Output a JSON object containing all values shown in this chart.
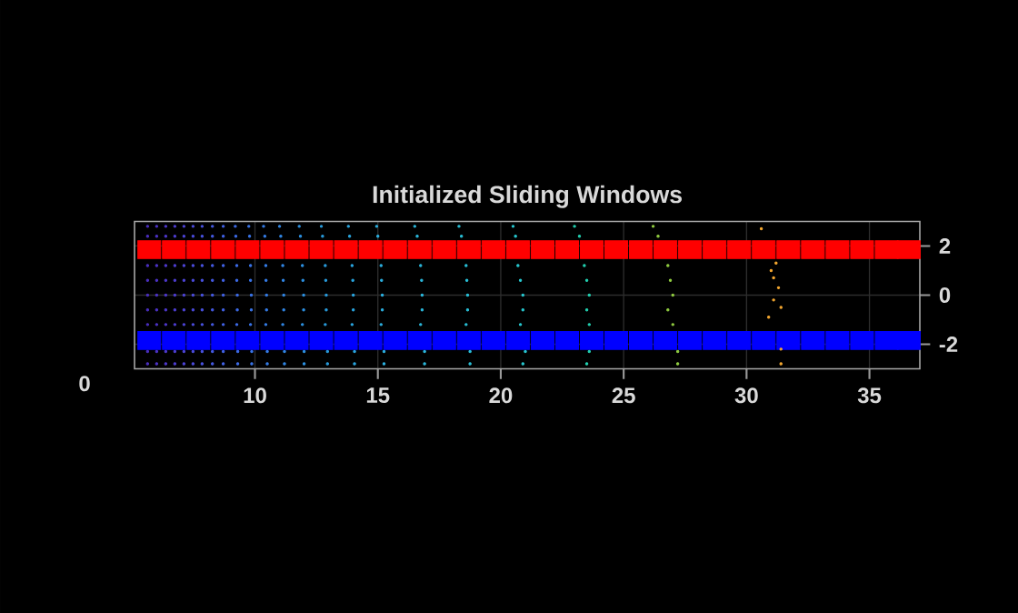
{
  "chart_data": {
    "type": "scatter",
    "title": "Initialized Sliding Windows",
    "annotations": [
      "0"
    ],
    "xlim": [
      5.1,
      37.05
    ],
    "ylim": [
      -3,
      3
    ],
    "xticks": [
      10,
      15,
      20,
      25,
      30,
      35
    ],
    "yticks": [
      -2,
      0,
      2
    ],
    "grid": true,
    "series": [
      {
        "marker": "square",
        "color": "#ff0000",
        "x": [
          5.7,
          6.7,
          7.7,
          8.7,
          9.7,
          10.7,
          11.7,
          12.7,
          13.7,
          14.7,
          15.7,
          16.7,
          17.7,
          18.7,
          19.7,
          20.7,
          21.7,
          22.7,
          23.7,
          24.7,
          25.7,
          26.7,
          27.7,
          28.7,
          29.7,
          30.7,
          31.7,
          32.7,
          33.7,
          34.7,
          35.7,
          36.6
        ],
        "values": [
          1.85,
          1.85,
          1.85,
          1.85,
          1.85,
          1.85,
          1.85,
          1.85,
          1.85,
          1.85,
          1.85,
          1.85,
          1.85,
          1.85,
          1.85,
          1.85,
          1.85,
          1.85,
          1.85,
          1.85,
          1.85,
          1.85,
          1.85,
          1.85,
          1.85,
          1.85,
          1.85,
          1.85,
          1.85,
          1.85,
          1.85,
          1.85
        ]
      },
      {
        "marker": "square",
        "color": "#0000ff",
        "x": [
          5.7,
          6.7,
          7.7,
          8.7,
          9.7,
          10.7,
          11.7,
          12.7,
          13.7,
          14.7,
          15.7,
          16.7,
          17.7,
          18.7,
          19.7,
          20.7,
          21.7,
          22.7,
          23.7,
          24.7,
          25.7,
          26.7,
          27.7,
          28.7,
          29.7,
          30.7,
          31.7,
          32.7,
          33.7,
          34.7,
          35.7,
          36.6
        ],
        "values": [
          -1.85,
          -1.85,
          -1.85,
          -1.85,
          -1.85,
          -1.85,
          -1.85,
          -1.85,
          -1.85,
          -1.85,
          -1.85,
          -1.85,
          -1.85,
          -1.85,
          -1.85,
          -1.85,
          -1.85,
          -1.85,
          -1.85,
          -1.85,
          -1.85,
          -1.85,
          -1.85,
          -1.85,
          -1.85,
          -1.85,
          -1.85,
          -1.85,
          -1.85,
          -1.85,
          -1.85,
          -1.85
        ]
      },
      {
        "marker": "circle",
        "color": "#4b2fbf",
        "x": [
          5.63,
          5.63,
          5.63,
          5.63,
          5.63,
          5.63,
          5.63,
          5.63,
          5.63
        ],
        "values": [
          2.8,
          2.4,
          1.2,
          0.6,
          0,
          -0.6,
          -1.2,
          -2.3,
          -2.8
        ]
      },
      {
        "marker": "circle",
        "color": "#4d33c6",
        "x": [
          6.0,
          6.0,
          6.0,
          6.0,
          6.0,
          6.0,
          6.0,
          6.0,
          6.0
        ],
        "values": [
          2.8,
          2.4,
          1.2,
          0.6,
          0,
          -0.6,
          -1.2,
          -2.3,
          -2.8
        ]
      },
      {
        "marker": "circle",
        "color": "#4e38cc",
        "x": [
          6.37,
          6.37,
          6.37,
          6.37,
          6.37,
          6.37,
          6.37,
          6.37,
          6.37
        ],
        "values": [
          2.8,
          2.4,
          1.2,
          0.6,
          0,
          -0.6,
          -1.2,
          -2.3,
          -2.8
        ]
      },
      {
        "marker": "circle",
        "color": "#4e3ed2",
        "x": [
          6.74,
          6.74,
          6.74,
          6.74,
          6.74,
          6.74,
          6.74,
          6.74,
          6.74
        ],
        "values": [
          2.8,
          2.4,
          1.2,
          0.6,
          0,
          -0.6,
          -1.2,
          -2.3,
          -2.8
        ]
      },
      {
        "marker": "circle",
        "color": "#4d44d7",
        "x": [
          7.11,
          7.11,
          7.11,
          7.11,
          7.11,
          7.11,
          7.11,
          7.11,
          7.11
        ],
        "values": [
          2.8,
          2.4,
          1.2,
          0.6,
          0,
          -0.6,
          -1.2,
          -2.3,
          -2.8
        ]
      },
      {
        "marker": "circle",
        "color": "#4b4bdb",
        "x": [
          7.48,
          7.48,
          7.48,
          7.48,
          7.48,
          7.48,
          7.48,
          7.48,
          7.48
        ],
        "values": [
          2.8,
          2.4,
          1.2,
          0.6,
          0,
          -0.6,
          -1.2,
          -2.3,
          -2.8
        ]
      },
      {
        "marker": "circle",
        "color": "#4852df",
        "x": [
          7.85,
          7.85,
          7.85,
          7.85,
          7.85,
          7.85,
          7.85,
          7.85,
          7.85
        ],
        "values": [
          2.8,
          2.4,
          1.2,
          0.6,
          0,
          -0.6,
          -1.2,
          -2.3,
          -2.8
        ]
      },
      {
        "marker": "circle",
        "color": "#455ae2",
        "x": [
          8.27,
          8.27,
          8.27,
          8.27,
          8.27,
          8.27,
          8.27,
          8.27,
          8.27
        ],
        "values": [
          2.8,
          2.4,
          1.2,
          0.6,
          0,
          -0.6,
          -1.2,
          -2.3,
          -2.8
        ]
      },
      {
        "marker": "circle",
        "color": "#4162e5",
        "x": [
          8.71,
          8.71,
          8.71,
          8.71,
          8.71,
          8.71,
          8.71,
          8.71,
          8.71
        ],
        "values": [
          2.8,
          2.4,
          1.2,
          0.6,
          0,
          -0.6,
          -1.2,
          -2.3,
          -2.8
        ]
      },
      {
        "marker": "circle",
        "color": "#3d6be7",
        "x": [
          9.2,
          9.22,
          9.26,
          9.26,
          9.28,
          9.28,
          9.26,
          9.3,
          9.3
        ],
        "values": [
          2.8,
          2.4,
          1.2,
          0.6,
          0,
          -0.6,
          -1.2,
          -2.3,
          -2.8
        ]
      },
      {
        "marker": "circle",
        "color": "#3974e8",
        "x": [
          9.75,
          9.78,
          9.82,
          9.82,
          9.85,
          9.85,
          9.82,
          9.87,
          9.87
        ],
        "values": [
          2.8,
          2.4,
          1.2,
          0.6,
          0,
          -0.6,
          -1.2,
          -2.3,
          -2.8
        ]
      },
      {
        "marker": "circle",
        "color": "#357de8",
        "x": [
          10.35,
          10.4,
          10.44,
          10.45,
          10.47,
          10.47,
          10.44,
          10.5,
          10.5
        ],
        "values": [
          2.8,
          2.4,
          1.2,
          0.6,
          0,
          -0.6,
          -1.2,
          -2.3,
          -2.8
        ]
      },
      {
        "marker": "circle",
        "color": "#3187e6",
        "x": [
          11.0,
          11.05,
          11.13,
          11.15,
          11.17,
          11.17,
          11.13,
          11.2,
          11.2
        ],
        "values": [
          2.8,
          2.4,
          1.2,
          0.6,
          0,
          -0.6,
          -1.2,
          -2.3,
          -2.8
        ]
      },
      {
        "marker": "circle",
        "color": "#2d91e2",
        "x": [
          11.8,
          11.85,
          11.93,
          11.95,
          11.98,
          11.98,
          11.93,
          12.0,
          12.0
        ],
        "values": [
          2.8,
          2.4,
          1.2,
          0.6,
          0,
          -0.6,
          -1.2,
          -2.3,
          -2.8
        ]
      },
      {
        "marker": "circle",
        "color": "#299bdc",
        "x": [
          12.7,
          12.75,
          12.86,
          12.88,
          12.9,
          12.9,
          12.86,
          12.95,
          12.95
        ],
        "values": [
          2.8,
          2.4,
          1.2,
          0.6,
          0,
          -0.6,
          -1.2,
          -2.3,
          -2.8
        ]
      },
      {
        "marker": "circle",
        "color": "#2aa6e0",
        "x": [
          13.8,
          13.85,
          13.95,
          13.98,
          14.0,
          14.0,
          13.95,
          14.05,
          14.05
        ],
        "values": [
          2.8,
          2.4,
          1.2,
          0.6,
          0,
          -0.6,
          -1.2,
          -2.3,
          -2.8
        ]
      },
      {
        "marker": "circle",
        "color": "#2cb0e0",
        "x": [
          14.95,
          15.0,
          15.13,
          15.15,
          15.18,
          15.18,
          15.13,
          15.25,
          15.25
        ],
        "values": [
          2.8,
          2.4,
          1.2,
          0.6,
          0,
          -0.6,
          -1.2,
          -2.3,
          -2.8
        ]
      },
      {
        "marker": "circle",
        "color": "#2bb8dc",
        "x": [
          16.5,
          16.6,
          16.74,
          16.78,
          16.8,
          16.8,
          16.74,
          16.9,
          16.9
        ],
        "values": [
          2.8,
          2.4,
          1.2,
          0.6,
          0,
          -0.6,
          -1.2,
          -2.3,
          -2.8
        ]
      },
      {
        "marker": "circle",
        "color": "#29c0d8",
        "x": [
          18.3,
          18.4,
          18.59,
          18.62,
          18.65,
          18.65,
          18.59,
          18.75,
          18.75
        ],
        "values": [
          2.8,
          2.4,
          1.2,
          0.6,
          0,
          -0.6,
          -1.2,
          -2.3,
          -2.8
        ]
      },
      {
        "marker": "circle",
        "color": "#27c8d0",
        "x": [
          20.5,
          20.6,
          20.7,
          20.8,
          20.9,
          20.9,
          20.8,
          21.0,
          20.9
        ],
        "values": [
          2.8,
          2.4,
          1.2,
          0.6,
          0,
          -0.6,
          -1.2,
          -2.3,
          -2.8
        ]
      },
      {
        "marker": "circle",
        "color": "#22d0b0",
        "x": [
          23.0,
          23.2,
          23.4,
          23.5,
          23.6,
          23.5,
          23.6,
          23.6,
          23.5
        ],
        "values": [
          2.8,
          2.4,
          1.2,
          0.6,
          0,
          -0.6,
          -1.2,
          -2.3,
          -2.8
        ]
      },
      {
        "marker": "circle",
        "color": "#90cc40",
        "x": [
          26.2,
          26.4,
          26.8,
          26.9,
          27.0,
          26.8,
          27.0,
          27.2,
          27.2
        ],
        "values": [
          2.8,
          2.4,
          1.2,
          0.6,
          0,
          -0.6,
          -1.2,
          -2.3,
          -2.8
        ]
      },
      {
        "marker": "circle",
        "color": "#f5a830",
        "x": [
          30.6,
          31.2,
          31.0,
          31.1,
          31.3,
          31.1,
          31.4,
          30.9,
          31.4,
          31.4
        ],
        "values": [
          2.7,
          1.3,
          1.0,
          0.7,
          0.3,
          -0.2,
          -0.5,
          -0.9,
          -2.2,
          -2.8
        ]
      }
    ]
  }
}
